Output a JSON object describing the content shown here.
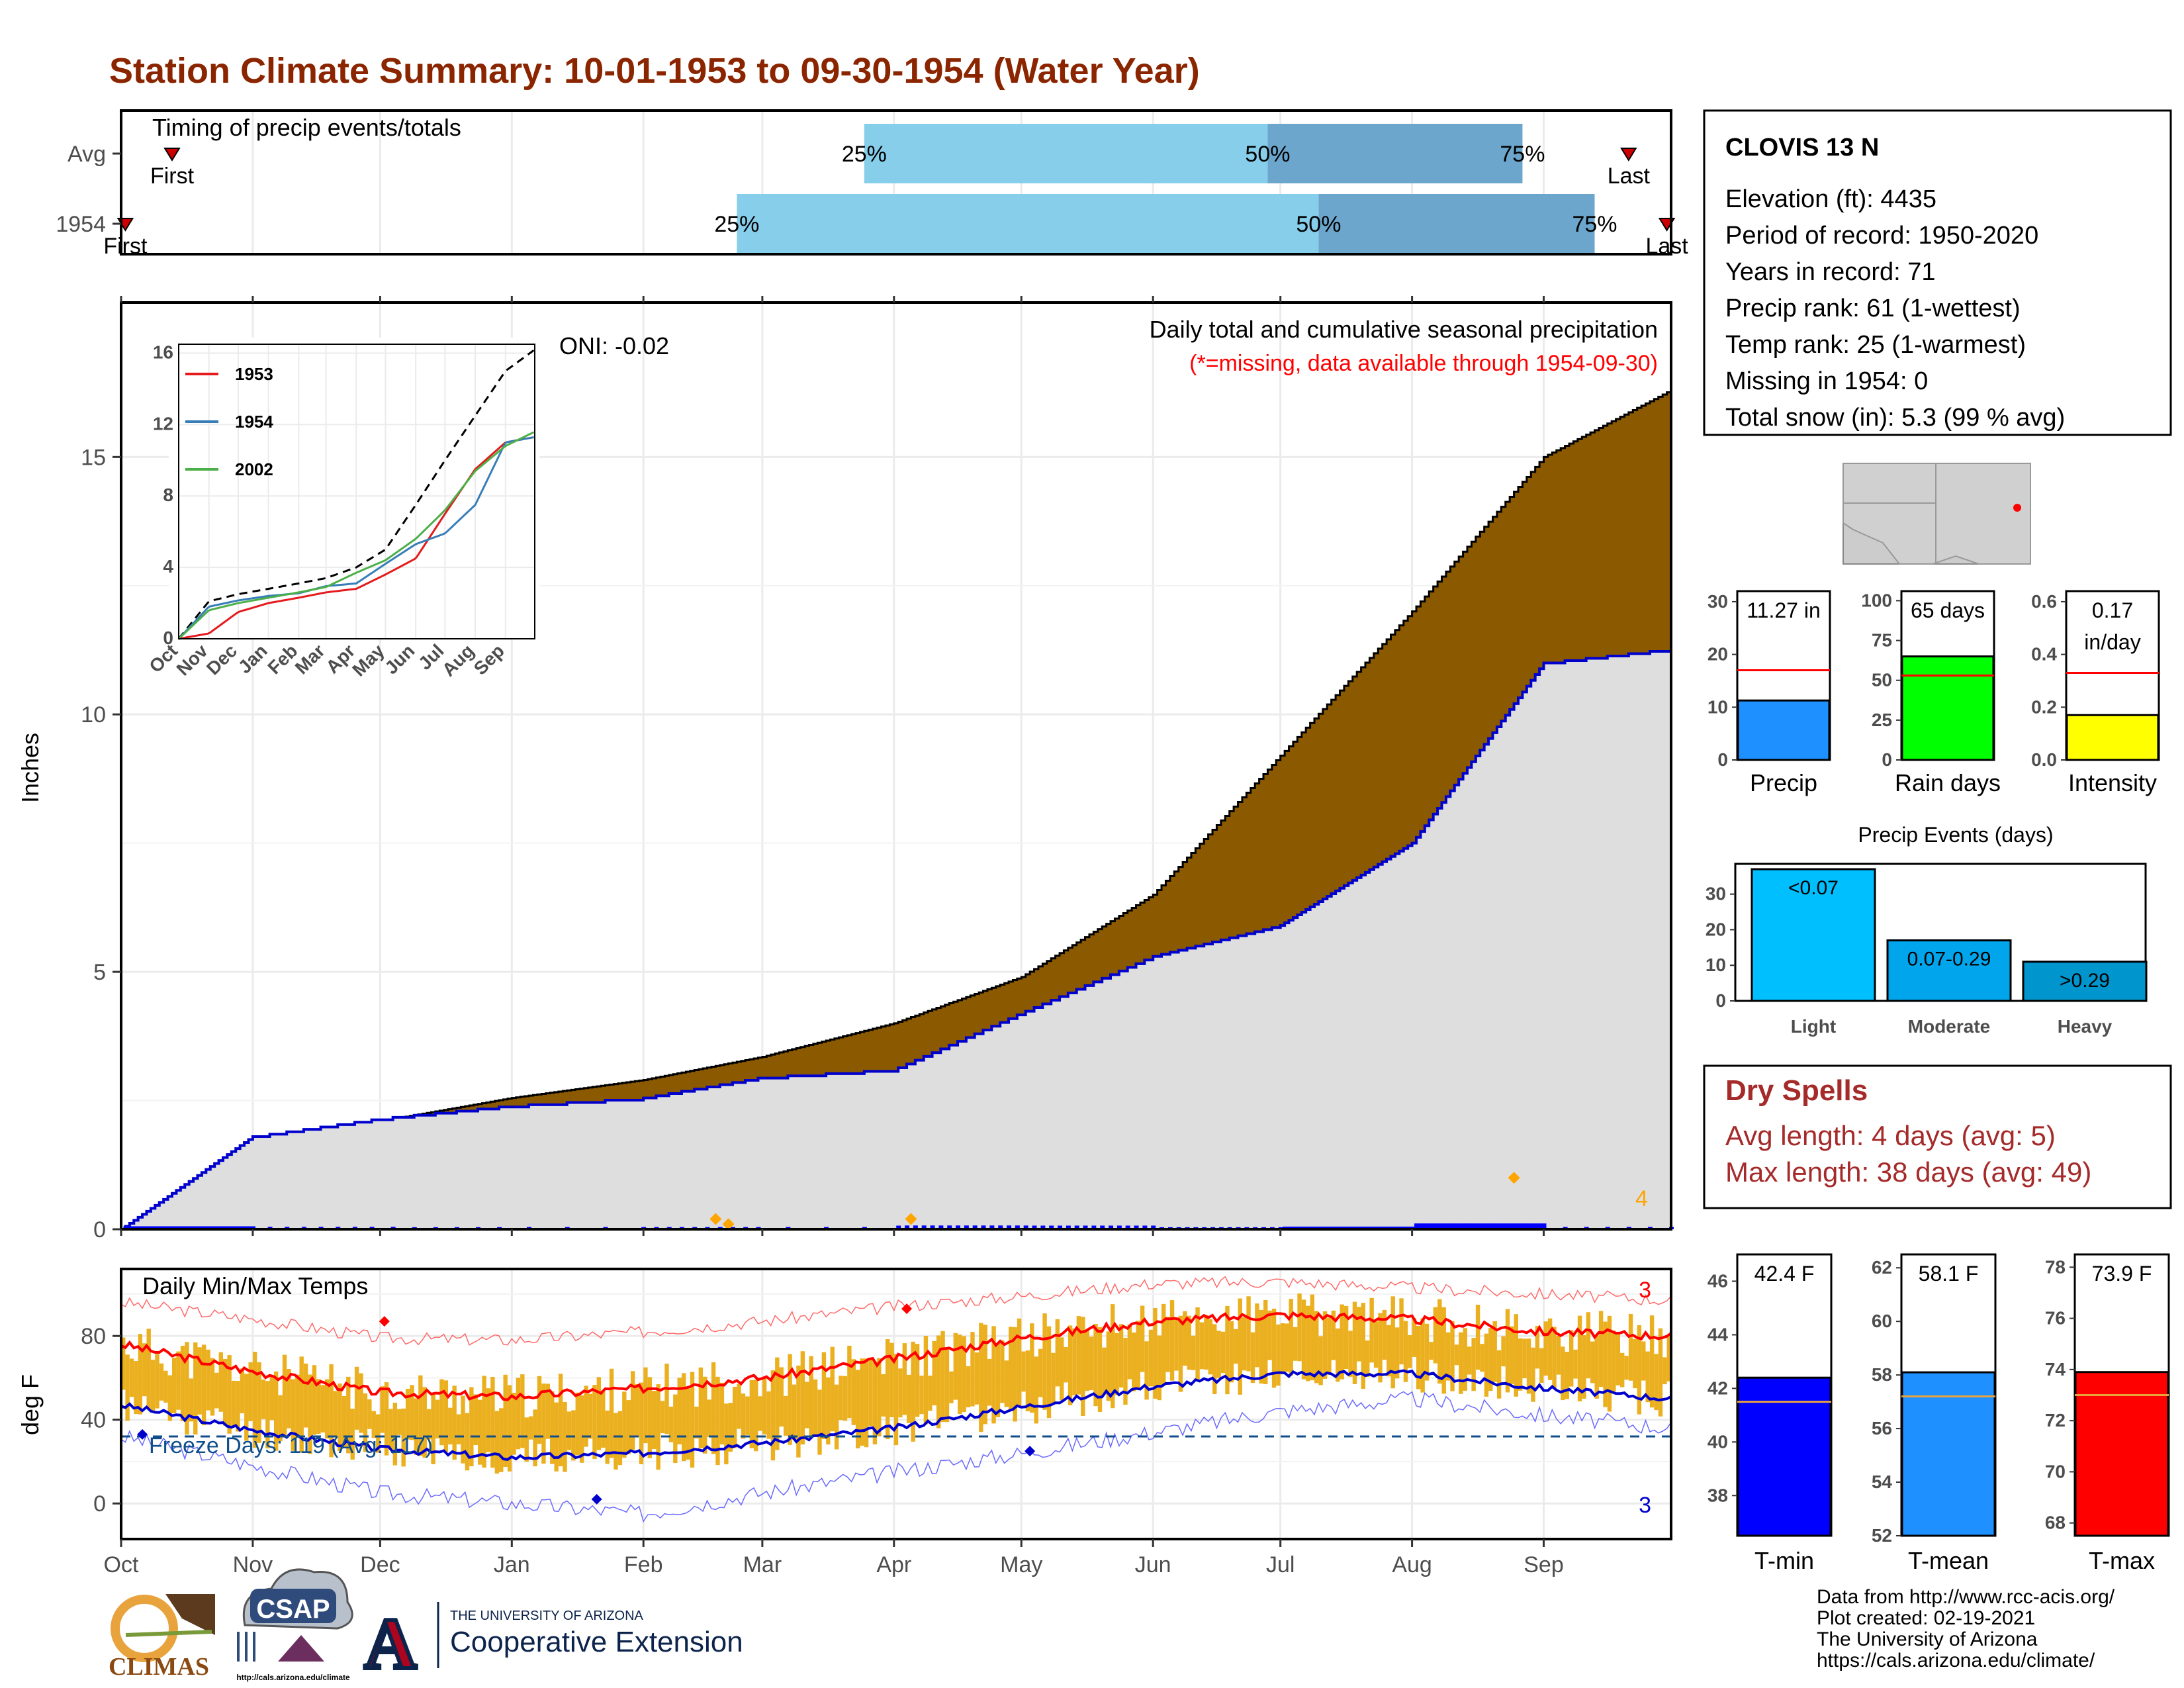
{
  "title": "Station Climate Summary: 10-01-1953 to 09-30-1954 (Water Year)",
  "colors": {
    "title": "#8B2500",
    "cum_fill": "#8B5A00",
    "cum_avg_fill": "#DEDEDE",
    "cum_line": "#0000CD",
    "daily_bar": "#0000FF",
    "light_blue": "#87CEEB",
    "mid_blue": "#6CA6CD",
    "temp_bar": "#EBB020",
    "tmax_avg": "#FF0000",
    "tmin_avg": "#0000CD",
    "dry_spells": "#A52A2A"
  },
  "timing_panel": {
    "label": "Timing of precip events/totals",
    "rows": [
      {
        "label": "Avg",
        "first_label": "First",
        "last_label": "Last",
        "first_day": 12,
        "last_day": 355,
        "p25": 175,
        "p50": 270,
        "p75": 330,
        "p25_label": "25%",
        "p50_label": "50%",
        "p75_label": "75%"
      },
      {
        "label": "1954",
        "first_label": "First",
        "last_label": "Last",
        "first_day": 1,
        "last_day": 364,
        "p25": 145,
        "p50": 282,
        "p75": 347,
        "p25_label": "25%",
        "p50_label": "50%",
        "p75_label": "75%"
      }
    ]
  },
  "precip_panel": {
    "ylabel": "Inches",
    "title": "Daily total and cumulative seasonal precipitation",
    "subtitle": "(*=missing, data available through 1954-09-30)",
    "oni": "ONI: -0.02",
    "yticks": [
      "0",
      "5",
      "10",
      "15"
    ],
    "corner_count": "4",
    "inset": {
      "yticks": [
        "0",
        "4",
        "8",
        "12",
        "16"
      ],
      "months": [
        "Oct",
        "Nov",
        "Dec",
        "Jan",
        "Feb",
        "Mar",
        "Apr",
        "May",
        "Jun",
        "Jul",
        "Aug",
        "Sep"
      ],
      "legend": [
        {
          "name": "1953",
          "color": "#E41A1C"
        },
        {
          "name": "1954",
          "color": "#377EB8"
        },
        {
          "name": "2002",
          "color": "#4DAF4A"
        }
      ]
    }
  },
  "temp_panel": {
    "ylabel": "deg F",
    "title": "Daily Min/Max Temps",
    "freeze_label": "Freeze Days: 119 (Avg: 117)",
    "top_count": "3",
    "bottom_count": "3",
    "yticks": [
      "0",
      "40",
      "80"
    ]
  },
  "months": [
    "Oct",
    "Nov",
    "Dec",
    "Jan",
    "Feb",
    "Mar",
    "Apr",
    "May",
    "Jun",
    "Jul",
    "Aug",
    "Sep"
  ],
  "station": {
    "name": "CLOVIS 13 N",
    "lines": [
      "Elevation (ft): 4435",
      "Period of record: 1950-2020",
      "Years in record: 71",
      "Precip rank: 61 (1-wettest)",
      "Temp rank: 25 (1-warmest)",
      "Missing in 1954: 0",
      "Total snow (in): 5.3 (99 % avg)"
    ]
  },
  "mini_bars": [
    {
      "name": "Precip",
      "value_label": "11.27 in",
      "value": 11.27,
      "avg": 17.0,
      "ymax": 32,
      "ticks": [
        "0",
        "10",
        "20",
        "30"
      ],
      "color": "#1E90FF"
    },
    {
      "name": "Rain days",
      "value_label": "65 days",
      "value": 65,
      "avg": 53,
      "ymax": 106,
      "ticks": [
        "0",
        "25",
        "50",
        "75",
        "100"
      ],
      "color": "#00FF00"
    },
    {
      "name": "Intensity",
      "value_label": "0.17 in/day",
      "value": 0.17,
      "avg": 0.33,
      "ymax": 0.64,
      "ticks": [
        "0.0",
        "0.2",
        "0.4",
        "0.6"
      ],
      "color": "#FFFF00"
    }
  ],
  "events": {
    "title": "Precip Events (days)",
    "ticks": [
      "0",
      "10",
      "20",
      "30"
    ],
    "bars": [
      {
        "category": "Light",
        "label": "<0.07",
        "value": 37,
        "color": "#00BFFF"
      },
      {
        "category": "Moderate",
        "label": "0.07-0.29",
        "value": 17,
        "color": "#00A5EC"
      },
      {
        "category": "Heavy",
        "label": ">0.29",
        "value": 11,
        "color": "#0095CC"
      }
    ]
  },
  "dry_spells": {
    "title": "Dry Spells",
    "avg_line": "Avg length: 4 days (avg: 5)",
    "max_line": "Max length: 38 days (avg: 49)"
  },
  "temp_bars": [
    {
      "name": "T-min",
      "value_label": "42.4 F",
      "value": 42.4,
      "avg": 41.5,
      "ymin": 36.5,
      "ymax": 47,
      "ticks": [
        "38",
        "40",
        "42",
        "44",
        "46"
      ],
      "color": "#0000FF"
    },
    {
      "name": "T-mean",
      "value_label": "58.1 F",
      "value": 58.1,
      "avg": 57.2,
      "ymin": 52,
      "ymax": 62.5,
      "ticks": [
        "52",
        "54",
        "56",
        "58",
        "60",
        "62"
      ],
      "color": "#1E90FF"
    },
    {
      "name": "T-max",
      "value_label": "73.9 F",
      "value": 73.9,
      "avg": 73.0,
      "ymin": 67.5,
      "ymax": 78.5,
      "ticks": [
        "68",
        "70",
        "72",
        "74",
        "76",
        "78"
      ],
      "color": "#FF0000"
    }
  ],
  "footer": {
    "lines": [
      "Data from http://www.rcc-acis.org/",
      "Plot created: 02-19-2021",
      "The University of Arizona",
      "https://cals.arizona.edu/climate/"
    ],
    "climas": "CLIMAS",
    "csap": "CSAP",
    "csap_url": "http://cals.arizona.edu/climate",
    "ua_small": "THE UNIVERSITY OF ARIZONA",
    "ua_big": "Cooperative Extension"
  },
  "chart_data": [
    {
      "type": "area",
      "title": "Daily total and cumulative seasonal precipitation",
      "ylabel": "Inches",
      "xlabel": "",
      "ylim": [
        0,
        17.5
      ],
      "x": [
        "Oct",
        "Nov",
        "Dec",
        "Jan",
        "Feb",
        "Mar",
        "Apr",
        "May",
        "Jun",
        "Jul",
        "Aug",
        "Sep",
        "Sep 30"
      ],
      "series": [
        {
          "values": [
            0.0,
            1.7,
            2.1,
            2.55,
            2.9,
            3.35,
            4.0,
            4.9,
            6.5,
            9.2,
            12.0,
            15.0,
            16.3
          ]
        },
        {
          "values": [
            0.0,
            1.8,
            2.15,
            2.4,
            2.55,
            2.95,
            3.1,
            4.2,
            5.3,
            5.9,
            7.5,
            11.0,
            11.27
          ]
        }
      ]
    },
    {
      "type": "line",
      "title": "",
      "ylim": [
        0,
        16
      ],
      "x": [
        "Oct",
        "Nov",
        "Dec",
        "Jan",
        "Feb",
        "Mar",
        "Apr",
        "May",
        "Jun",
        "Jul",
        "Aug",
        "Sep",
        "Sep 30"
      ],
      "series": [
        {
          "values": [
            0.0,
            2.1,
            2.5,
            2.8,
            3.1,
            3.4,
            4.0,
            5.0,
            7.5,
            10.0,
            12.5,
            15.0,
            16.2
          ]
        },
        {
          "name": "1953",
          "values": [
            0.0,
            0.3,
            1.5,
            2.0,
            2.3,
            2.6,
            2.8,
            3.6,
            4.5,
            7.0,
            9.5,
            11.0,
            11.3
          ]
        },
        {
          "name": "1954",
          "values": [
            0.0,
            1.8,
            2.15,
            2.4,
            2.55,
            2.95,
            3.1,
            4.2,
            5.3,
            5.9,
            7.5,
            11.0,
            11.3
          ]
        },
        {
          "name": "2002",
          "values": [
            0.0,
            1.6,
            2.0,
            2.3,
            2.6,
            2.9,
            3.7,
            4.4,
            5.6,
            7.2,
            9.4,
            10.8,
            11.6
          ]
        }
      ]
    },
    {
      "type": "line",
      "title": "Daily Min/Max Temps",
      "ylabel": "deg F",
      "ylim": [
        -20,
        110
      ],
      "x": [
        "Oct",
        "Nov",
        "Dec",
        "Jan",
        "Feb",
        "Mar",
        "Apr",
        "May",
        "Jun",
        "Jul",
        "Aug",
        "Sep",
        "Sep 30"
      ],
      "series": [
        {
          "values": [
            76,
            63,
            53,
            51,
            55,
            60,
            69,
            79,
            87,
            90,
            88,
            82,
            80
          ]
        },
        {
          "values": [
            47,
            35,
            26,
            22,
            24,
            29,
            36,
            46,
            56,
            62,
            62,
            55,
            50
          ]
        },
        {
          "values": [
            96,
            88,
            79,
            78,
            82,
            87,
            94,
            99,
            105,
            106,
            103,
            100,
            97
          ]
        },
        {
          "values": [
            32,
            18,
            5,
            0,
            -5,
            5,
            15,
            24,
            34,
            44,
            50,
            42,
            36
          ]
        }
      ]
    },
    {
      "type": "bar",
      "title": "Precip Events (days)",
      "categories": [
        "Light",
        "Moderate",
        "Heavy"
      ],
      "values": [
        37,
        17,
        11
      ]
    }
  ]
}
